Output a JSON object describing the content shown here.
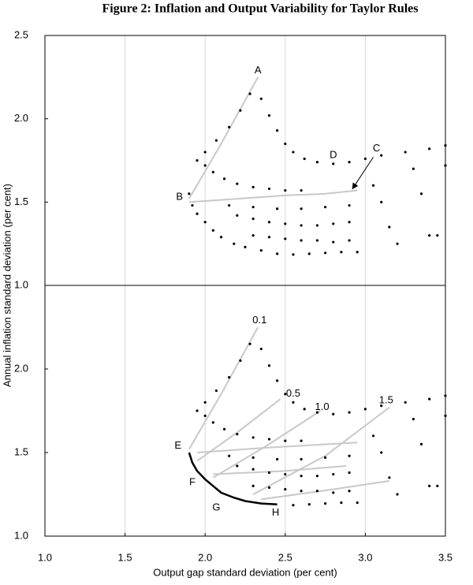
{
  "chart_data": [
    {
      "type": "scatter",
      "title": "Figure 2: Inflation and Output Variability for Taylor Rules",
      "ylabel": "Annual inflation standard deviation (per cent)",
      "xlim": [
        1.0,
        3.5
      ],
      "ylim": [
        1.0,
        2.5
      ],
      "yticks": [
        {
          "value": 1.0,
          "label": "1.0"
        },
        1.5,
        {
          "value": 2.0,
          "label": "2.0"
        },
        2.5
      ],
      "grid": true,
      "color": "#000000",
      "line_color": "#c8c8c8",
      "points": {
        "x": [
          1.95,
          2.0,
          2.07,
          2.15,
          2.22,
          2.28,
          2.35,
          2.4,
          2.45,
          2.5,
          2.55,
          2.62,
          2.7,
          2.8,
          2.9,
          3.0,
          3.1,
          3.25,
          3.4,
          3.5,
          2.0,
          2.05,
          2.12,
          2.2,
          2.3,
          2.4,
          2.5,
          2.6,
          1.9,
          1.92,
          1.95,
          2.0,
          2.05,
          2.1,
          2.18,
          2.25,
          2.35,
          2.45,
          2.55,
          2.65,
          2.75,
          2.85,
          2.95,
          2.3,
          2.4,
          2.5,
          2.6,
          2.7,
          2.8,
          2.9,
          2.2,
          2.3,
          2.4,
          2.5,
          2.6,
          2.7,
          2.8,
          2.9,
          2.15,
          2.3,
          2.45,
          2.6,
          2.75,
          2.9,
          3.05,
          3.1,
          3.15,
          3.2,
          3.3,
          3.35,
          3.4,
          3.45,
          3.5
        ],
        "y": [
          1.75,
          1.8,
          1.87,
          1.95,
          2.05,
          2.15,
          2.12,
          2.02,
          1.93,
          1.85,
          1.8,
          1.76,
          1.74,
          1.73,
          1.74,
          1.76,
          1.78,
          1.8,
          1.82,
          1.84,
          1.72,
          1.68,
          1.64,
          1.61,
          1.59,
          1.58,
          1.57,
          1.57,
          1.55,
          1.48,
          1.43,
          1.38,
          1.33,
          1.29,
          1.25,
          1.23,
          1.21,
          1.19,
          1.185,
          1.19,
          1.195,
          1.2,
          1.2,
          1.3,
          1.29,
          1.28,
          1.27,
          1.27,
          1.26,
          1.27,
          1.42,
          1.4,
          1.38,
          1.37,
          1.36,
          1.36,
          1.37,
          1.38,
          1.48,
          1.47,
          1.46,
          1.46,
          1.47,
          1.48,
          1.6,
          1.5,
          1.35,
          1.25,
          1.7,
          1.55,
          1.3,
          1.3,
          1.72
        ]
      },
      "lines": [
        {
          "x": [
            1.9,
            2.1,
            2.33
          ],
          "y": [
            1.52,
            1.85,
            2.25
          ]
        },
        {
          "x": [
            1.9,
            2.2,
            2.5,
            2.75,
            2.95
          ],
          "y": [
            1.5,
            1.52,
            1.54,
            1.55,
            1.57
          ]
        }
      ],
      "annotations": [
        {
          "text": "A"
        },
        {
          "text": "B"
        },
        {
          "text": "C"
        },
        {
          "text": "D"
        }
      ]
    },
    {
      "type": "scatter",
      "xlabel": "Output gap standard deviation (per cent)",
      "xlim": [
        1.0,
        3.5
      ],
      "ylim": [
        1.0,
        2.5
      ],
      "xticks": [
        {
          "value": 1.0,
          "label": "1.0"
        },
        1.5,
        {
          "value": 2.0,
          "label": "2.0"
        },
        2.5,
        {
          "value": 3.0,
          "label": "3.0"
        },
        3.5
      ],
      "yticks": [
        {
          "value": 1.0,
          "label": "1.0"
        },
        1.5,
        {
          "value": 2.0,
          "label": "2.0"
        }
      ],
      "grid": true,
      "color": "#000000",
      "line_color": "#c8c8c8",
      "points": {
        "x": [
          1.95,
          2.0,
          2.07,
          2.15,
          2.22,
          2.28,
          2.35,
          2.4,
          2.45,
          2.5,
          2.55,
          2.62,
          2.7,
          2.8,
          2.9,
          3.0,
          3.1,
          3.25,
          3.4,
          3.5,
          2.0,
          2.05,
          2.12,
          2.2,
          2.3,
          2.4,
          2.5,
          2.6,
          2.55,
          2.65,
          2.75,
          2.85,
          2.95,
          2.3,
          2.4,
          2.5,
          2.6,
          2.7,
          2.8,
          2.9,
          2.2,
          2.3,
          2.4,
          2.5,
          2.6,
          2.7,
          2.8,
          2.9,
          2.15,
          2.3,
          2.45,
          2.6,
          2.75,
          2.9,
          3.05,
          3.1,
          3.15,
          3.2,
          3.3,
          3.35,
          3.4,
          3.45,
          3.5
        ],
        "y": [
          1.75,
          1.8,
          1.87,
          1.95,
          2.05,
          2.15,
          2.12,
          2.02,
          1.93,
          1.85,
          1.8,
          1.76,
          1.74,
          1.73,
          1.74,
          1.76,
          1.78,
          1.8,
          1.82,
          1.84,
          1.72,
          1.68,
          1.64,
          1.61,
          1.59,
          1.58,
          1.57,
          1.57,
          1.185,
          1.19,
          1.195,
          1.2,
          1.2,
          1.3,
          1.29,
          1.28,
          1.27,
          1.27,
          1.26,
          1.27,
          1.42,
          1.4,
          1.38,
          1.37,
          1.36,
          1.36,
          1.37,
          1.38,
          1.48,
          1.47,
          1.46,
          1.46,
          1.47,
          1.48,
          1.6,
          1.5,
          1.35,
          1.25,
          1.7,
          1.55,
          1.3,
          1.3,
          1.72
        ]
      },
      "lines": [
        {
          "x": [
            1.9,
            2.1,
            2.33
          ],
          "y": [
            1.52,
            1.85,
            2.25
          ]
        },
        {
          "x": [
            1.95,
            2.2,
            2.47
          ],
          "y": [
            1.45,
            1.62,
            1.82
          ]
        },
        {
          "x": [
            2.05,
            2.4,
            2.72
          ],
          "y": [
            1.35,
            1.55,
            1.75
          ]
        },
        {
          "x": [
            2.3,
            2.75,
            3.15
          ],
          "y": [
            1.25,
            1.48,
            1.77
          ]
        },
        {
          "x": [
            1.95,
            2.4,
            2.95
          ],
          "y": [
            1.5,
            1.53,
            1.56
          ]
        },
        {
          "x": [
            2.05,
            2.5,
            2.88
          ],
          "y": [
            1.37,
            1.39,
            1.42
          ]
        },
        {
          "x": [
            2.35,
            2.8,
            3.15
          ],
          "y": [
            1.22,
            1.28,
            1.33
          ]
        }
      ],
      "frontier": {
        "x": [
          1.9,
          1.92,
          1.95,
          2.0,
          2.05,
          2.1,
          2.18,
          2.25,
          2.35,
          2.45
        ],
        "y": [
          1.5,
          1.44,
          1.39,
          1.34,
          1.3,
          1.26,
          1.23,
          1.21,
          1.195,
          1.19
        ]
      },
      "annotations": [
        {
          "text": "0.1"
        },
        {
          "text": "0.5"
        },
        {
          "text": "1.0"
        },
        {
          "text": "1.5"
        },
        {
          "text": "E"
        },
        {
          "text": "F"
        },
        {
          "text": "G"
        },
        {
          "text": "H"
        }
      ]
    }
  ]
}
